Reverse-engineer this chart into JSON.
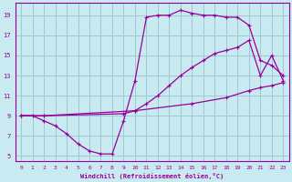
{
  "background_color": "#c8eaf0",
  "grid_color": "#9fc8d8",
  "line_color": "#990099",
  "marker": "+",
  "markersize": 3.5,
  "xlabel": "Windchill (Refroidissement éolien,°C)",
  "xlim": [
    -0.5,
    23.5
  ],
  "ylim": [
    4.5,
    20.2
  ],
  "xticks": [
    0,
    1,
    2,
    3,
    4,
    5,
    6,
    7,
    8,
    9,
    10,
    11,
    12,
    13,
    14,
    15,
    16,
    17,
    18,
    19,
    20,
    21,
    22,
    23
  ],
  "yticks": [
    5,
    7,
    9,
    11,
    13,
    15,
    17,
    19
  ],
  "curve1_x": [
    0,
    1,
    2,
    3,
    4,
    5,
    6,
    7,
    8,
    9,
    10,
    11,
    12,
    13,
    14,
    15,
    16,
    17,
    18,
    19,
    20,
    21,
    22,
    23
  ],
  "curve1_y": [
    9,
    9,
    8.5,
    8.0,
    7.2,
    6.2,
    5.5,
    5.2,
    5.2,
    8.5,
    12.5,
    18.8,
    19.0,
    19.0,
    19.5,
    19.2,
    19.0,
    19.0,
    18.8,
    18.8,
    18.0,
    14.5,
    14.0,
    13.0
  ],
  "curve2_x": [
    0,
    2,
    9,
    10,
    11,
    12,
    13,
    14,
    15,
    16,
    17,
    18,
    19,
    20,
    21,
    22,
    23
  ],
  "curve2_y": [
    9,
    9,
    9.2,
    9.5,
    10.2,
    11.0,
    12.0,
    13.0,
    13.8,
    14.5,
    15.2,
    15.5,
    15.8,
    16.5,
    13.0,
    15.0,
    12.5
  ],
  "curve3_x": [
    0,
    2,
    10,
    15,
    18,
    20,
    21,
    22,
    23
  ],
  "curve3_y": [
    9,
    9,
    9.5,
    10.2,
    10.8,
    11.5,
    11.8,
    12.0,
    12.3
  ]
}
